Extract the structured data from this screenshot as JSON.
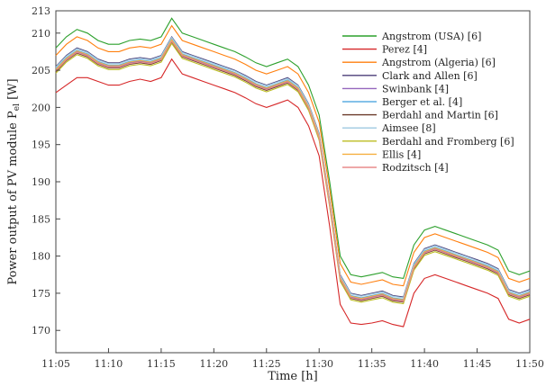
{
  "chart_data": {
    "type": "line",
    "xlabel": "Time [h]",
    "ylabel": "Power output of PV module P",
    "ylabel_sub": "el",
    "ylabel_unit": " [W]",
    "xlim": [
      "11:05",
      "11:50"
    ],
    "ylim": [
      167,
      213
    ],
    "yticks": [
      170,
      175,
      180,
      185,
      190,
      195,
      200,
      205,
      210,
      213
    ],
    "xticks": [
      "11:05",
      "11:10",
      "11:15",
      "11:20",
      "11:25",
      "11:30",
      "11:35",
      "11:40",
      "11:45",
      "11:50"
    ],
    "grid": false,
    "legend_position": "top-right",
    "x": [
      "11:05",
      "11:06",
      "11:07",
      "11:08",
      "11:09",
      "11:10",
      "11:11",
      "11:12",
      "11:13",
      "11:14",
      "11:15",
      "11:16",
      "11:17",
      "11:18",
      "11:19",
      "11:20",
      "11:21",
      "11:22",
      "11:23",
      "11:24",
      "11:25",
      "11:26",
      "11:27",
      "11:28",
      "11:29",
      "11:30",
      "11:31",
      "11:32",
      "11:33",
      "11:34",
      "11:35",
      "11:36",
      "11:37",
      "11:38",
      "11:39",
      "11:40",
      "11:41",
      "11:42",
      "11:43",
      "11:44",
      "11:45",
      "11:46",
      "11:47",
      "11:48",
      "11:49",
      "11:50"
    ],
    "series": [
      {
        "name": "Angstrom (USA) [6]",
        "color": "#2ca02c",
        "values": [
          208,
          209.5,
          210.5,
          210,
          209,
          208.5,
          208.5,
          209,
          209.2,
          209,
          209.5,
          212,
          210,
          209.5,
          209,
          208.5,
          208,
          207.5,
          206.8,
          206,
          205.5,
          206,
          206.5,
          205.5,
          203,
          199,
          190,
          180,
          177.5,
          177.2,
          177.5,
          177.8,
          177.2,
          177,
          181.5,
          183.5,
          184,
          183.5,
          183,
          182.5,
          182,
          181.5,
          180.8,
          178,
          177.5,
          178
        ]
      },
      {
        "name": "Perez [4]",
        "color": "#d62728",
        "values": [
          202,
          203,
          204,
          204,
          203.5,
          203,
          203,
          203.5,
          203.8,
          203.5,
          204,
          206.5,
          204.5,
          204,
          203.5,
          203,
          202.5,
          202,
          201.3,
          200.5,
          200,
          200.5,
          201,
          200,
          197.5,
          193.5,
          184,
          173.5,
          171,
          170.8,
          171,
          171.3,
          170.8,
          170.5,
          175,
          177,
          177.5,
          177,
          176.5,
          176,
          175.5,
          175,
          174.3,
          171.5,
          171,
          171.5
        ]
      },
      {
        "name": "Angstrom (Algeria) [6]",
        "color": "#ff7f0e",
        "values": [
          207,
          208.5,
          209.5,
          209,
          208,
          207.5,
          207.5,
          208,
          208.2,
          208,
          208.5,
          211,
          209,
          208.5,
          208,
          207.5,
          207,
          206.5,
          205.8,
          205,
          204.5,
          205,
          205.5,
          204.5,
          202,
          198,
          189,
          179,
          176.5,
          176.2,
          176.5,
          176.8,
          176.2,
          176,
          180.5,
          182.5,
          183,
          182.5,
          182,
          181.5,
          181,
          180.5,
          179.8,
          177,
          176.5,
          177
        ]
      },
      {
        "name": "Clark and Allen [6]",
        "color": "#4b3e7a",
        "values": [
          205.5,
          207,
          208,
          207.5,
          206.5,
          206,
          206,
          206.5,
          206.7,
          206.5,
          207,
          209.5,
          207.5,
          207,
          206.5,
          206,
          205.5,
          205,
          204.3,
          203.5,
          203,
          203.5,
          204,
          203,
          200.5,
          196.5,
          187.5,
          177.5,
          175,
          174.7,
          175,
          175.3,
          174.7,
          174.5,
          179,
          181,
          181.5,
          181,
          180.5,
          180,
          179.5,
          179,
          178.3,
          175.5,
          175,
          175.5
        ]
      },
      {
        "name": "Swinbank [4]",
        "color": "#9467bd",
        "values": [
          205,
          206.5,
          207.5,
          207,
          206,
          205.5,
          205.5,
          206,
          206.2,
          206,
          206.5,
          209,
          207,
          206.5,
          206,
          205.5,
          205,
          204.5,
          203.8,
          203,
          202.5,
          203,
          203.5,
          202.5,
          200,
          196,
          187,
          177,
          174.5,
          174.2,
          174.5,
          174.8,
          174.2,
          174,
          178.5,
          180.5,
          181,
          180.5,
          180,
          179.5,
          179,
          178.5,
          177.8,
          175,
          174.5,
          175
        ]
      },
      {
        "name": "Berger et al. [4]",
        "color": "#5dade2",
        "values": [
          205.2,
          206.7,
          207.7,
          207.2,
          206.2,
          205.7,
          205.7,
          206.2,
          206.4,
          206.2,
          206.7,
          209.2,
          207.2,
          206.7,
          206.2,
          205.7,
          205.2,
          204.7,
          204,
          203.2,
          202.7,
          203.2,
          203.7,
          202.7,
          200.2,
          196.2,
          187.2,
          177.2,
          174.7,
          174.4,
          174.7,
          175,
          174.4,
          174.2,
          178.7,
          180.7,
          181.2,
          180.7,
          180.2,
          179.7,
          179.2,
          178.7,
          178,
          175.2,
          174.7,
          175.2
        ]
      },
      {
        "name": "Berdahl and Martin [6]",
        "color": "#6b3a2a",
        "values": [
          204.8,
          206.3,
          207.3,
          206.8,
          205.8,
          205.3,
          205.3,
          205.8,
          206,
          205.8,
          206.3,
          208.8,
          206.8,
          206.3,
          205.8,
          205.3,
          204.8,
          204.3,
          203.6,
          202.8,
          202.3,
          202.8,
          203.3,
          202.3,
          199.8,
          195.8,
          186.8,
          176.8,
          174.3,
          174,
          174.3,
          174.6,
          174,
          173.8,
          178.3,
          180.3,
          180.8,
          180.3,
          179.8,
          179.3,
          178.8,
          178.3,
          177.6,
          174.8,
          174.3,
          174.8
        ]
      },
      {
        "name": "Aimsee [8]",
        "color": "#9ecae1",
        "values": [
          205.4,
          206.9,
          207.9,
          207.4,
          206.4,
          205.9,
          205.9,
          206.4,
          206.6,
          206.4,
          206.9,
          209.4,
          207.4,
          206.9,
          206.4,
          205.9,
          205.4,
          204.9,
          204.2,
          203.4,
          202.9,
          203.4,
          203.9,
          202.9,
          200.4,
          196.4,
          187.4,
          177.4,
          174.9,
          174.6,
          174.9,
          175.2,
          174.6,
          174.4,
          178.9,
          180.9,
          181.4,
          180.9,
          180.4,
          179.9,
          179.4,
          178.9,
          178.2,
          175.4,
          174.9,
          175.4
        ]
      },
      {
        "name": "Berdahl and Fromberg [6]",
        "color": "#bcbd22",
        "values": [
          204.6,
          206.1,
          207.1,
          206.6,
          205.6,
          205.1,
          205.1,
          205.6,
          205.8,
          205.6,
          206.1,
          208.6,
          206.6,
          206.1,
          205.6,
          205.1,
          204.6,
          204.1,
          203.4,
          202.6,
          202.1,
          202.6,
          203.1,
          202.1,
          199.6,
          195.6,
          186.6,
          176.6,
          174.1,
          173.8,
          174.1,
          174.4,
          173.8,
          173.6,
          178.1,
          180.1,
          180.6,
          180.1,
          179.6,
          179.1,
          178.6,
          178.1,
          177.4,
          174.6,
          174.1,
          174.6
        ]
      },
      {
        "name": "Ellis [4]",
        "color": "#f5b041",
        "values": [
          205.1,
          206.6,
          207.6,
          207.1,
          206.1,
          205.6,
          205.6,
          206.1,
          206.3,
          206.1,
          206.6,
          209.1,
          207.1,
          206.6,
          206.1,
          205.6,
          205.1,
          204.6,
          203.9,
          203.1,
          202.6,
          203.1,
          203.6,
          202.6,
          200.1,
          196.1,
          187.1,
          177.1,
          174.6,
          174.3,
          174.6,
          174.9,
          174.3,
          174.1,
          178.6,
          180.6,
          181.1,
          180.6,
          180.1,
          179.6,
          179.1,
          178.6,
          177.9,
          175.1,
          174.6,
          175.1
        ]
      },
      {
        "name": "Rodzitsch [4]",
        "color": "#e88c8c",
        "values": [
          204.9,
          206.4,
          207.4,
          206.9,
          205.9,
          205.4,
          205.4,
          205.9,
          206.1,
          205.9,
          206.4,
          208.9,
          206.9,
          206.4,
          205.9,
          205.4,
          204.9,
          204.4,
          203.7,
          202.9,
          202.4,
          202.9,
          203.4,
          202.4,
          199.9,
          195.9,
          186.9,
          176.9,
          174.4,
          174.1,
          174.4,
          174.7,
          174.1,
          173.9,
          178.4,
          180.4,
          180.9,
          180.4,
          179.9,
          179.4,
          178.9,
          178.4,
          177.7,
          174.9,
          174.4,
          174.9
        ]
      }
    ]
  }
}
